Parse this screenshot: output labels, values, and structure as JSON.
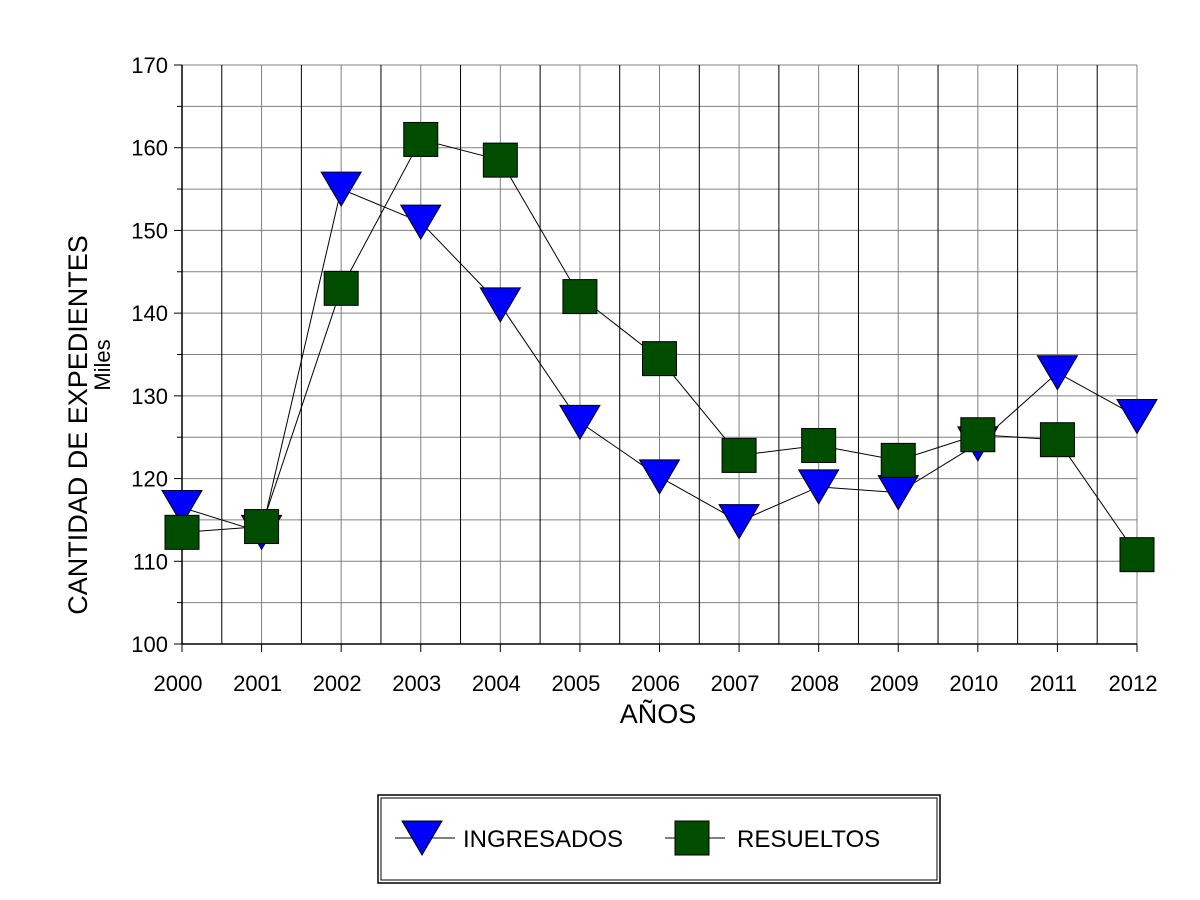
{
  "chart_data": {
    "type": "line",
    "title": "",
    "xlabel": "AÑOS",
    "ylabel": "CANTIDAD DE EXPEDIENTES",
    "yunit_label": "Miles",
    "x": [
      "2000",
      "2001",
      "2002",
      "2003",
      "2004",
      "2005",
      "2006",
      "2007",
      "2008",
      "2009",
      "2010",
      "2011",
      "2012"
    ],
    "ylim": [
      100,
      170
    ],
    "yticks": [
      100,
      110,
      120,
      130,
      140,
      150,
      160,
      170
    ],
    "grid": true,
    "legend_position": "bottom",
    "series": [
      {
        "name": "INGRESADOS",
        "marker": "triangle-down",
        "color": "#0000ff",
        "values": [
          116.5,
          113.5,
          155.0,
          151.0,
          141.0,
          126.8,
          120.2,
          114.8,
          119.0,
          118.3,
          124.2,
          132.8,
          127.5
        ]
      },
      {
        "name": "RESUELTOS",
        "marker": "square",
        "color": "#004d00",
        "values": [
          113.5,
          114.2,
          143.0,
          161.0,
          158.5,
          142.0,
          134.5,
          122.8,
          124.0,
          122.2,
          125.3,
          124.7,
          110.8
        ]
      }
    ]
  }
}
